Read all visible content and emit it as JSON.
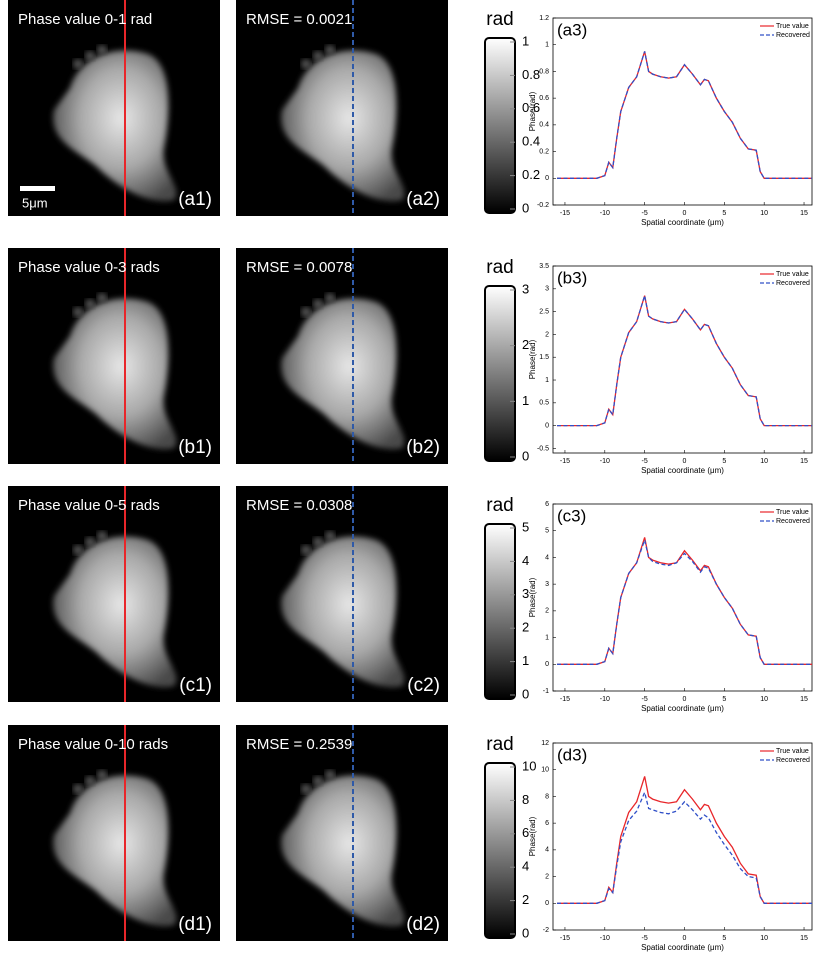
{
  "chart_data": [
    {
      "type": "line",
      "panel_label": "(a3)",
      "xlabel": "Spatial coordinate (μm)",
      "ylabel": "Phase(rad)",
      "x": [
        -16,
        -14,
        -12,
        -11,
        -10,
        -9.5,
        -9,
        -8.5,
        -8,
        -7,
        -6,
        -5,
        -4.5,
        -4,
        -3,
        -2,
        -1,
        0,
        1,
        2,
        2.5,
        3,
        4,
        5,
        6,
        7,
        8,
        9,
        9.5,
        10,
        12,
        14,
        16
      ],
      "series": [
        {
          "name": "True value",
          "color": "#e8262a",
          "linestyle": "solid",
          "values": [
            0,
            0,
            0,
            0,
            0.02,
            0.12,
            0.08,
            0.3,
            0.5,
            0.68,
            0.76,
            0.95,
            0.8,
            0.78,
            0.76,
            0.75,
            0.76,
            0.85,
            0.78,
            0.7,
            0.74,
            0.73,
            0.6,
            0.5,
            0.42,
            0.3,
            0.22,
            0.21,
            0.05,
            0,
            0,
            0,
            0
          ]
        },
        {
          "name": "Recovered",
          "color": "#3050c8",
          "linestyle": "dashed",
          "values": [
            0,
            0,
            0,
            0,
            0.02,
            0.12,
            0.08,
            0.3,
            0.5,
            0.68,
            0.76,
            0.95,
            0.8,
            0.78,
            0.76,
            0.75,
            0.76,
            0.85,
            0.78,
            0.7,
            0.74,
            0.73,
            0.6,
            0.5,
            0.42,
            0.3,
            0.22,
            0.21,
            0.05,
            0,
            0,
            0,
            0
          ]
        }
      ],
      "xlim": [
        -16.5,
        16
      ],
      "xticks": [
        -15,
        -10,
        -5,
        0,
        5,
        10,
        15
      ],
      "ylim": [
        -0.2,
        1.2
      ],
      "yticks": [
        -0.2,
        0,
        0.2,
        0.4,
        0.6,
        0.8,
        1,
        1.2
      ],
      "legend": "upper right"
    },
    {
      "type": "line",
      "panel_label": "(b3)",
      "xlabel": "Spatial coordinate (μm)",
      "ylabel": "Phase(rad)",
      "x": [
        -16,
        -14,
        -12,
        -11,
        -10,
        -9.5,
        -9,
        -8.5,
        -8,
        -7,
        -6,
        -5,
        -4.5,
        -4,
        -3,
        -2,
        -1,
        0,
        1,
        2,
        2.5,
        3,
        4,
        5,
        6,
        7,
        8,
        9,
        9.5,
        10,
        12,
        14,
        16
      ],
      "series": [
        {
          "name": "True value",
          "color": "#e8262a",
          "linestyle": "solid",
          "values": [
            0,
            0,
            0,
            0,
            0.06,
            0.36,
            0.24,
            0.9,
            1.5,
            2.04,
            2.28,
            2.85,
            2.4,
            2.34,
            2.28,
            2.25,
            2.28,
            2.55,
            2.34,
            2.1,
            2.22,
            2.19,
            1.8,
            1.5,
            1.26,
            0.9,
            0.66,
            0.63,
            0.15,
            0,
            0,
            0,
            0
          ]
        },
        {
          "name": "Recovered",
          "color": "#3050c8",
          "linestyle": "dashed",
          "values": [
            0,
            0,
            0,
            0,
            0.06,
            0.36,
            0.24,
            0.9,
            1.5,
            2.04,
            2.28,
            2.85,
            2.4,
            2.34,
            2.28,
            2.25,
            2.28,
            2.55,
            2.34,
            2.1,
            2.22,
            2.19,
            1.8,
            1.5,
            1.26,
            0.9,
            0.66,
            0.63,
            0.15,
            0,
            0,
            0,
            0
          ]
        }
      ],
      "xlim": [
        -16.5,
        16
      ],
      "xticks": [
        -15,
        -10,
        -5,
        0,
        5,
        10,
        15
      ],
      "ylim": [
        -0.6,
        3.5
      ],
      "yticks": [
        -0.5,
        0,
        0.5,
        1,
        1.5,
        2,
        2.5,
        3,
        3.5
      ],
      "legend": "upper right"
    },
    {
      "type": "line",
      "panel_label": "(c3)",
      "xlabel": "Spatial coordinate (μm)",
      "ylabel": "Phase(rad)",
      "x": [
        -16,
        -14,
        -12,
        -11,
        -10,
        -9.5,
        -9,
        -8.5,
        -8,
        -7,
        -6,
        -5,
        -4.5,
        -4,
        -3,
        -2,
        -1,
        0,
        1,
        2,
        2.5,
        3,
        4,
        5,
        6,
        7,
        8,
        9,
        9.5,
        10,
        12,
        14,
        16
      ],
      "series": [
        {
          "name": "True value",
          "color": "#e8262a",
          "linestyle": "solid",
          "values": [
            0,
            0,
            0,
            0,
            0.1,
            0.6,
            0.4,
            1.5,
            2.5,
            3.4,
            3.8,
            4.75,
            4.0,
            3.9,
            3.8,
            3.75,
            3.8,
            4.25,
            3.9,
            3.5,
            3.7,
            3.65,
            3.0,
            2.5,
            2.1,
            1.5,
            1.1,
            1.05,
            0.25,
            0,
            0,
            0,
            0
          ]
        },
        {
          "name": "Recovered",
          "color": "#3050c8",
          "linestyle": "dashed",
          "values": [
            0,
            0,
            0,
            0,
            0.1,
            0.6,
            0.4,
            1.5,
            2.5,
            3.4,
            3.8,
            4.65,
            4.0,
            3.85,
            3.75,
            3.7,
            3.8,
            4.15,
            3.85,
            3.45,
            3.65,
            3.6,
            3.0,
            2.5,
            2.1,
            1.5,
            1.1,
            1.05,
            0.25,
            0,
            0,
            0,
            0
          ]
        }
      ],
      "xlim": [
        -16.5,
        16
      ],
      "xticks": [
        -15,
        -10,
        -5,
        0,
        5,
        10,
        15
      ],
      "ylim": [
        -1,
        6
      ],
      "yticks": [
        -1,
        0,
        1,
        2,
        3,
        4,
        5,
        6
      ],
      "legend": "upper right"
    },
    {
      "type": "line",
      "panel_label": "(d3)",
      "xlabel": "Spatial coordinate (μm)",
      "ylabel": "Phase(rad)",
      "x": [
        -16,
        -14,
        -12,
        -11,
        -10,
        -9.5,
        -9,
        -8.5,
        -8,
        -7,
        -6,
        -5,
        -4.5,
        -4,
        -3,
        -2,
        -1,
        0,
        1,
        2,
        2.5,
        3,
        4,
        5,
        6,
        7,
        8,
        9,
        9.5,
        10,
        12,
        14,
        16
      ],
      "series": [
        {
          "name": "True value",
          "color": "#e8262a",
          "linestyle": "solid",
          "values": [
            0,
            0,
            0,
            0,
            0.2,
            1.2,
            0.8,
            3,
            5,
            6.8,
            7.6,
            9.5,
            8,
            7.8,
            7.6,
            7.5,
            7.6,
            8.5,
            7.8,
            7,
            7.4,
            7.3,
            6,
            5,
            4.2,
            3,
            2.2,
            2.1,
            0.5,
            0,
            0,
            0,
            0
          ]
        },
        {
          "name": "Recovered",
          "color": "#3050c8",
          "linestyle": "dashed",
          "values": [
            0,
            0,
            0,
            0,
            0.2,
            1.1,
            0.8,
            2.8,
            4.6,
            6.2,
            6.9,
            8.3,
            7.1,
            7.0,
            6.8,
            6.7,
            6.9,
            7.6,
            7.0,
            6.3,
            6.6,
            6.4,
            5.3,
            4.4,
            3.6,
            2.6,
            2.0,
            1.9,
            0.5,
            0,
            0,
            0,
            0
          ]
        }
      ],
      "xlim": [
        -16.5,
        16
      ],
      "xticks": [
        -15,
        -10,
        -5,
        0,
        5,
        10,
        15
      ],
      "ylim": [
        -2,
        12
      ],
      "yticks": [
        -2,
        0,
        2,
        4,
        6,
        8,
        10,
        12
      ],
      "legend": "upper right"
    }
  ],
  "panels": [
    {
      "image_label_1": "Phase value 0-1 rad",
      "image_label_2": "RMSE = 0.0021",
      "tag_1": "(a1)",
      "tag_2": "(a2)",
      "colorbar": {
        "title": "rad",
        "lim": [
          0,
          1
        ],
        "ticks": [
          0,
          0.2,
          0.4,
          0.6,
          0.8,
          1
        ]
      }
    },
    {
      "image_label_1": "Phase value 0-3 rads",
      "image_label_2": "RMSE = 0.0078",
      "tag_1": "(b1)",
      "tag_2": "(b2)",
      "colorbar": {
        "title": "rad",
        "lim": [
          0,
          3
        ],
        "ticks": [
          0,
          1,
          2,
          3
        ]
      }
    },
    {
      "image_label_1": "Phase value 0-5 rads",
      "image_label_2": "RMSE = 0.0308",
      "tag_1": "(c1)",
      "tag_2": "(c2)",
      "colorbar": {
        "title": "rad",
        "lim": [
          0,
          5
        ],
        "ticks": [
          0,
          1,
          2,
          3,
          4,
          5
        ]
      }
    },
    {
      "image_label_1": "Phase value 0-10 rads",
      "image_label_2": "RMSE = 0.2539",
      "tag_1": "(d1)",
      "tag_2": "(d2)",
      "colorbar": {
        "title": "rad",
        "lim": [
          0,
          10
        ],
        "ticks": [
          0,
          2,
          4,
          6,
          8,
          10
        ]
      }
    }
  ],
  "scale_bar": "5μm"
}
